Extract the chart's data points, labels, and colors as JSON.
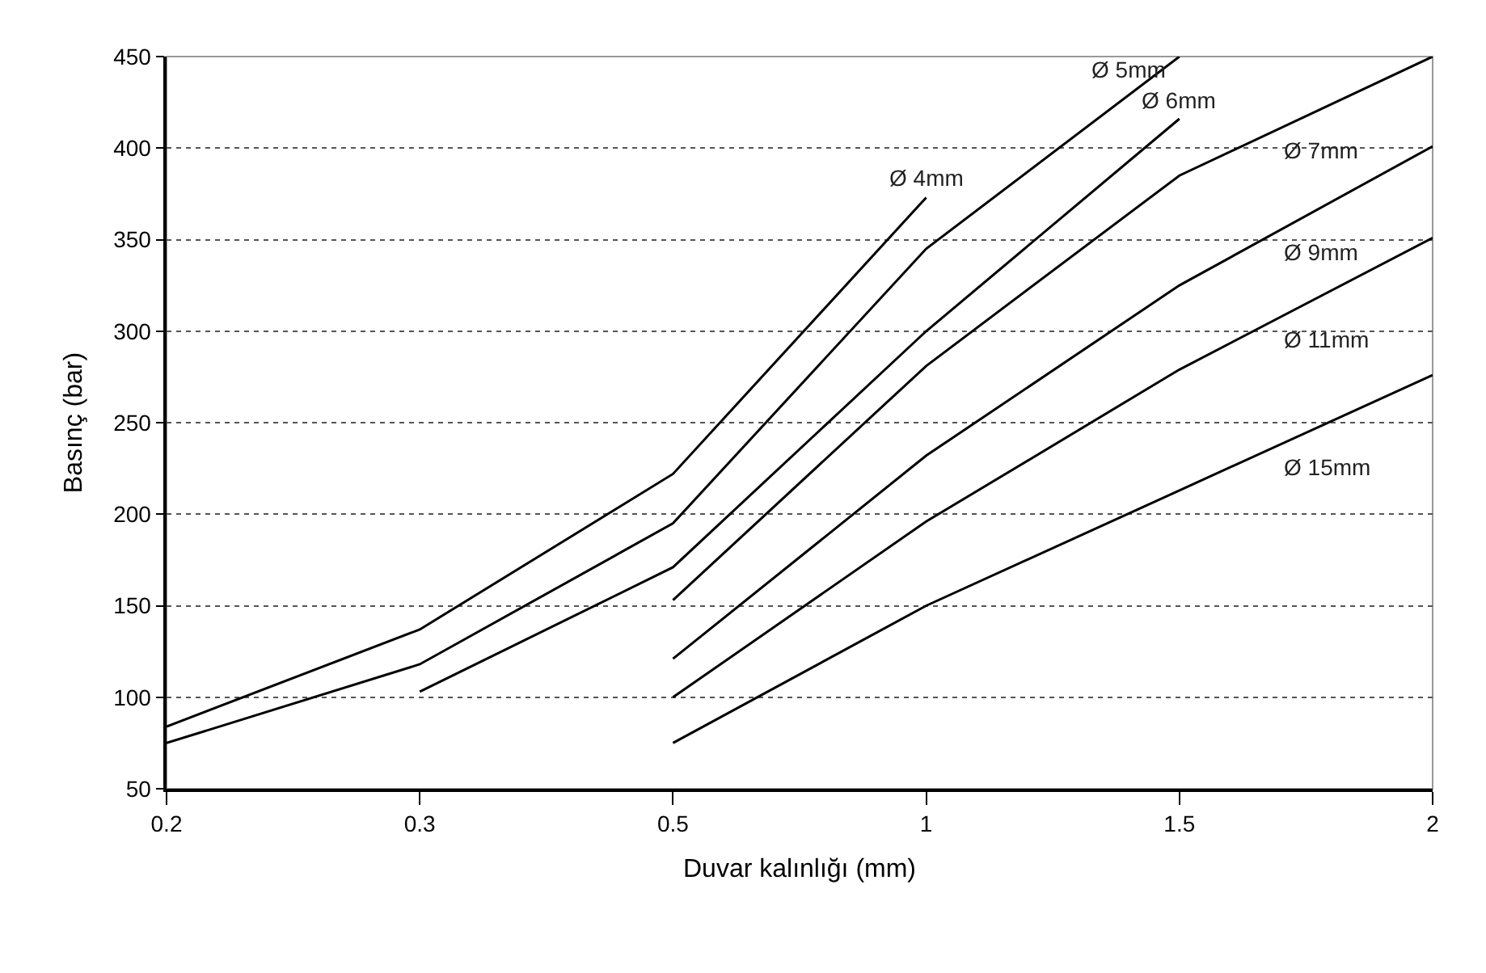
{
  "chart_data": {
    "type": "line",
    "xlabel": "Duvar kalınlığı (mm)",
    "ylabel": "Basınç (bar)",
    "categories": [
      "0.2",
      "0.3",
      "0.5",
      "1",
      "1.5",
      "2"
    ],
    "ylim": [
      50,
      450
    ],
    "yticks": [
      50,
      100,
      150,
      200,
      250,
      300,
      350,
      400,
      450
    ],
    "grid": "y",
    "legend": false,
    "marker": "none",
    "line_style": "solid",
    "series": [
      {
        "name": "Ø 4mm",
        "color": "#000000",
        "values": [
          84,
          137,
          222,
          373,
          null,
          null
        ]
      },
      {
        "name": "Ø 5mm",
        "color": "#000000",
        "values": [
          75,
          118,
          195,
          345,
          450,
          null
        ]
      },
      {
        "name": "Ø 6mm",
        "color": "#000000",
        "values": [
          null,
          103,
          171,
          300,
          416,
          null
        ]
      },
      {
        "name": "Ø 7mm",
        "color": "#000000",
        "values": [
          null,
          null,
          153,
          281,
          385,
          450
        ]
      },
      {
        "name": "Ø 9mm",
        "color": "#000000",
        "values": [
          null,
          null,
          121,
          232,
          325,
          401
        ]
      },
      {
        "name": "Ø 11mm",
        "color": "#000000",
        "values": [
          null,
          null,
          100,
          196,
          279,
          351
        ]
      },
      {
        "name": "Ø 15mm",
        "color": "#000000",
        "values": [
          null,
          null,
          75,
          150,
          213,
          276
        ]
      }
    ]
  }
}
